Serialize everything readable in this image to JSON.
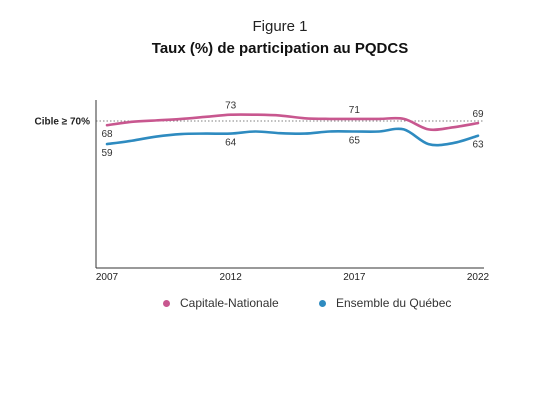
{
  "figure": {
    "label": "Figure 1",
    "title": "Taux (%) de participation au PQDCS"
  },
  "chart_data": {
    "type": "line",
    "title": "Taux (%) de participation au PQDCS",
    "x_ticks": [
      "2007",
      "2012",
      "2017",
      "2022"
    ],
    "x": [
      2007,
      2008,
      2009,
      2010,
      2011,
      2012,
      2013,
      2014,
      2015,
      2016,
      2017,
      2018,
      2019,
      2020,
      2021,
      2022
    ],
    "xlim": [
      2007,
      2022
    ],
    "ylim": [
      0,
      80
    ],
    "grid": false,
    "target": {
      "label": "Cible ≥ 70%",
      "value": 70
    },
    "series": [
      {
        "name": "Capitale-Nationale",
        "color": "#c8578f",
        "values": [
          68,
          69.6,
          70.3,
          71,
          72,
          73,
          73,
          72.6,
          71.3,
          71,
          71,
          71,
          71,
          66,
          67,
          69
        ],
        "labels": [
          {
            "index": 0,
            "text": "68",
            "pos": "below"
          },
          {
            "index": 5,
            "text": "73",
            "pos": "above"
          },
          {
            "index": 10,
            "text": "71",
            "pos": "above"
          },
          {
            "index": 15,
            "text": "69",
            "pos": "above"
          }
        ]
      },
      {
        "name": "Ensemble du Québec",
        "color": "#2e8bc0",
        "values": [
          59,
          60.6,
          62.6,
          63.8,
          64,
          64,
          65,
          64.2,
          64,
          65,
          65,
          65,
          66,
          59,
          59.5,
          63
        ],
        "labels": [
          {
            "index": 0,
            "text": "59",
            "pos": "below"
          },
          {
            "index": 5,
            "text": "64",
            "pos": "below"
          },
          {
            "index": 10,
            "text": "65",
            "pos": "below"
          },
          {
            "index": 15,
            "text": "63",
            "pos": "below"
          }
        ]
      }
    ]
  }
}
